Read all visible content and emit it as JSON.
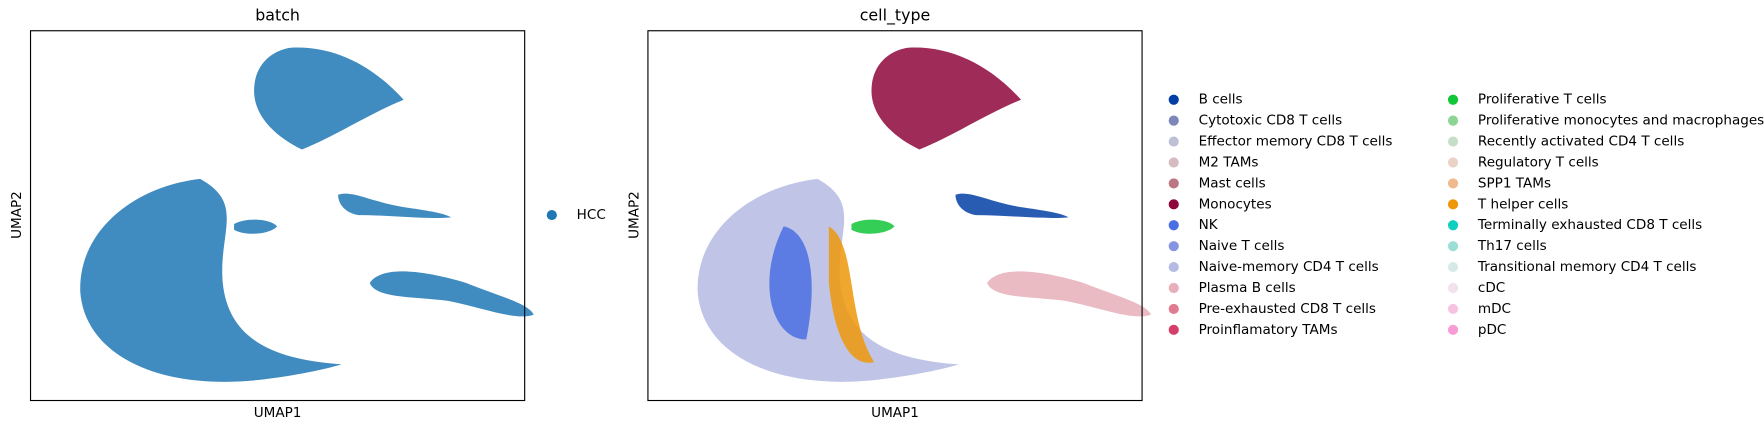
{
  "chart_data": [
    {
      "type": "scatter",
      "title": "batch",
      "x_label": "UMAP1",
      "y_label": "UMAP2",
      "legend": "right",
      "series": [
        {
          "name": "HCC",
          "color": "#1f77b4"
        }
      ]
    },
    {
      "type": "scatter",
      "title": "cell_type",
      "x_label": "UMAP1",
      "y_label": "UMAP2",
      "legend": "right",
      "series": [
        {
          "name": "B cells",
          "color": "#023fa5"
        },
        {
          "name": "Cytotoxic CD8 T cells",
          "color": "#7d87b9"
        },
        {
          "name": "Effector memory CD8 T cells",
          "color": "#bec1d4"
        },
        {
          "name": "M2 TAMs",
          "color": "#d6bcc0"
        },
        {
          "name": "Mast cells",
          "color": "#bb7784"
        },
        {
          "name": "Monocytes",
          "color": "#8e063b"
        },
        {
          "name": "NK",
          "color": "#4a6fe3"
        },
        {
          "name": "Naive T cells",
          "color": "#8595e1"
        },
        {
          "name": "Naive-memory CD4 T cells",
          "color": "#b5bbe3"
        },
        {
          "name": "Plasma B cells",
          "color": "#e6afb9"
        },
        {
          "name": "Pre-exhausted CD8 T cells",
          "color": "#e07b91"
        },
        {
          "name": "Proinflamatory TAMs",
          "color": "#d33f6a"
        },
        {
          "name": "Proliferative T cells",
          "color": "#11c638"
        },
        {
          "name": "Proliferative monocytes and macrophages",
          "color": "#8dd593"
        },
        {
          "name": "Recently activated CD4 T cells",
          "color": "#c6dec7"
        },
        {
          "name": "Regulatory T cells",
          "color": "#ead3c6"
        },
        {
          "name": "SPP1 TAMs",
          "color": "#f0b98d"
        },
        {
          "name": "T helper cells",
          "color": "#ef9708"
        },
        {
          "name": "Terminally exhausted CD8 T cells",
          "color": "#0fcfc0"
        },
        {
          "name": "Th17 cells",
          "color": "#9cded6"
        },
        {
          "name": "Transitional memory CD4 T cells",
          "color": "#d5eae7"
        },
        {
          "name": "cDC",
          "color": "#f3e1eb"
        },
        {
          "name": "mDC",
          "color": "#f6c4e1"
        },
        {
          "name": "pDC",
          "color": "#f79cd4"
        }
      ]
    }
  ]
}
